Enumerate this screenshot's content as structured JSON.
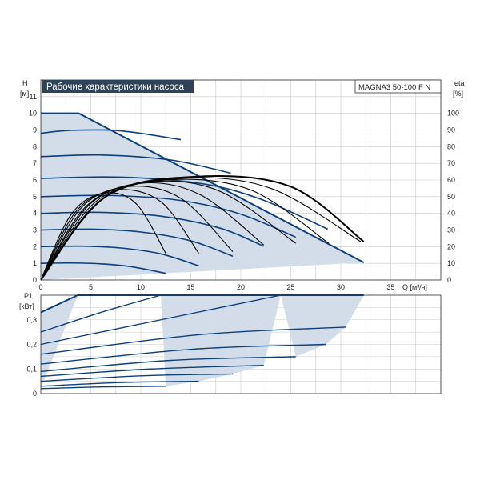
{
  "chart_data": [
    {
      "type": "line",
      "title": "Рабочие характеристики насоса",
      "model": "MAGNA3 50-100 F N",
      "ylabel": "H",
      "yunit": "[м]",
      "y2label": "eta",
      "y2unit": "[%]",
      "xlabel": "Q [м³/ч]",
      "xlim": [
        0,
        40
      ],
      "ylim": [
        0,
        12
      ],
      "y2lim": [
        0,
        120
      ],
      "x_ticks": [
        "0",
        "5",
        "10",
        "15",
        "20",
        "25",
        "30",
        "35"
      ],
      "y_ticks": [
        "0",
        "1",
        "2",
        "3",
        "4",
        "5",
        "6",
        "7",
        "8",
        "9",
        "10",
        "11"
      ],
      "y2_ticks": [
        "0",
        "10",
        "20",
        "30",
        "40",
        "50",
        "60",
        "70",
        "80",
        "90",
        "100"
      ],
      "grid": true,
      "colors": {
        "curve": "#0c3f7c",
        "fill": "#d3dde9",
        "eta": "#000000",
        "grid": "#c8c8c8"
      },
      "max_curve": [
        [
          0,
          10
        ],
        [
          3.8,
          10
        ],
        [
          32.3,
          1.05
        ]
      ],
      "speed_curves": [
        {
          "points": [
            [
              0,
              1.0
            ],
            [
              3,
              1.02
            ],
            [
              6,
              0.97
            ],
            [
              9,
              0.8
            ],
            [
              12.5,
              0.4
            ]
          ]
        },
        {
          "points": [
            [
              0,
              2.0
            ],
            [
              4,
              2.03
            ],
            [
              8,
              1.92
            ],
            [
              12,
              1.57
            ],
            [
              15.8,
              0.85
            ]
          ]
        },
        {
          "points": [
            [
              0,
              3.0
            ],
            [
              5,
              3.05
            ],
            [
              10,
              2.88
            ],
            [
              15,
              2.35
            ],
            [
              19.2,
              1.43
            ]
          ]
        },
        {
          "points": [
            [
              0,
              4.0
            ],
            [
              6,
              4.06
            ],
            [
              12,
              3.83
            ],
            [
              18,
              3.1
            ],
            [
              22.3,
              2.02
            ]
          ]
        },
        {
          "points": [
            [
              0,
              5.0
            ],
            [
              7,
              5.07
            ],
            [
              14,
              4.77
            ],
            [
              20,
              3.95
            ],
            [
              25.5,
              2.57
            ]
          ]
        },
        {
          "points": [
            [
              0,
              6.1
            ],
            [
              8,
              6.17
            ],
            [
              16,
              5.79
            ],
            [
              22,
              4.85
            ],
            [
              28.7,
              3.05
            ]
          ]
        },
        {
          "points": [
            [
              0,
              7.4
            ],
            [
              6,
              7.5
            ],
            [
              13,
              7.2
            ],
            [
              19,
              6.41
            ]
          ]
        },
        {
          "points": [
            [
              0,
              8.8
            ],
            [
              3,
              8.98
            ],
            [
              8,
              8.95
            ],
            [
              14,
              8.42
            ]
          ]
        },
        {
          "points": [
            [
              0,
              10.0
            ],
            [
              3.8,
              10.0
            ]
          ]
        }
      ],
      "eta_curves": [
        {
          "points": [
            [
              0,
              0
            ],
            [
              3,
              39
            ],
            [
              6.2,
              52
            ],
            [
              9.5,
              46
            ],
            [
              12.5,
              16
            ]
          ]
        },
        {
          "points": [
            [
              0,
              0
            ],
            [
              3.5,
              41
            ],
            [
              7.5,
              54
            ],
            [
              12,
              47
            ],
            [
              15.8,
              16
            ]
          ]
        },
        {
          "points": [
            [
              0,
              0
            ],
            [
              4,
              43
            ],
            [
              8.7,
              56
            ],
            [
              14,
              49
            ],
            [
              19.2,
              17
            ]
          ]
        },
        {
          "points": [
            [
              0,
              0
            ],
            [
              4.5,
              44
            ],
            [
              10,
              58
            ],
            [
              16,
              51
            ],
            [
              22.3,
              21
            ]
          ]
        },
        {
          "points": [
            [
              0,
              0
            ],
            [
              5,
              46
            ],
            [
              11.2,
              59
            ],
            [
              18,
              53
            ],
            [
              25.5,
              22
            ]
          ]
        },
        {
          "points": [
            [
              0,
              0
            ],
            [
              5.5,
              47
            ],
            [
              12.5,
              60
            ],
            [
              21,
              54
            ],
            [
              28.8,
              22
            ]
          ]
        },
        {
          "points": [
            [
              0,
              0
            ],
            [
              6,
              48
            ],
            [
              14,
              61
            ],
            [
              23,
              55
            ],
            [
              32,
              23
            ]
          ]
        },
        {
          "points": [
            [
              0,
              0
            ],
            [
              6.5,
              50
            ],
            [
              15.5,
              62
            ],
            [
              25,
              56
            ],
            [
              32.3,
              23
            ]
          ]
        }
      ]
    },
    {
      "type": "line",
      "ylabel": "P1",
      "yunit": "[кВт]",
      "xlim": [
        0,
        40
      ],
      "ylim": [
        0,
        0.4
      ],
      "y_ticks": [
        "0",
        "0,1",
        "0,2",
        "0,3"
      ],
      "grid": true,
      "max_curve": [
        [
          0,
          0.33
        ],
        [
          3.7,
          0.4
        ],
        [
          32.3,
          0.4
        ]
      ],
      "power_curves": [
        {
          "points": [
            [
              0,
              0.02
            ],
            [
              6,
              0.027
            ],
            [
              12.5,
              0.03
            ]
          ]
        },
        {
          "points": [
            [
              0,
              0.03
            ],
            [
              8,
              0.045
            ],
            [
              15.8,
              0.05
            ]
          ]
        },
        {
          "points": [
            [
              0,
              0.05
            ],
            [
              10,
              0.072
            ],
            [
              19.2,
              0.08
            ]
          ]
        },
        {
          "points": [
            [
              0,
              0.07
            ],
            [
              11,
              0.1
            ],
            [
              22.3,
              0.115
            ]
          ]
        },
        {
          "points": [
            [
              0,
              0.09
            ],
            [
              13,
              0.135
            ],
            [
              25.5,
              0.15
            ]
          ]
        },
        {
          "points": [
            [
              0,
              0.12
            ],
            [
              15,
              0.18
            ],
            [
              28.5,
              0.2
            ]
          ]
        },
        {
          "points": [
            [
              0,
              0.16
            ],
            [
              16,
              0.24
            ],
            [
              30.5,
              0.27
            ]
          ]
        },
        {
          "points": [
            [
              0,
              0.2
            ],
            [
              12,
              0.3
            ],
            [
              24,
              0.4
            ]
          ]
        },
        {
          "points": [
            [
              0,
              0.25
            ],
            [
              6,
              0.33
            ],
            [
              12,
              0.4
            ]
          ]
        },
        {
          "points": [
            [
              0,
              0.33
            ],
            [
              3.7,
              0.4
            ]
          ]
        }
      ]
    }
  ]
}
